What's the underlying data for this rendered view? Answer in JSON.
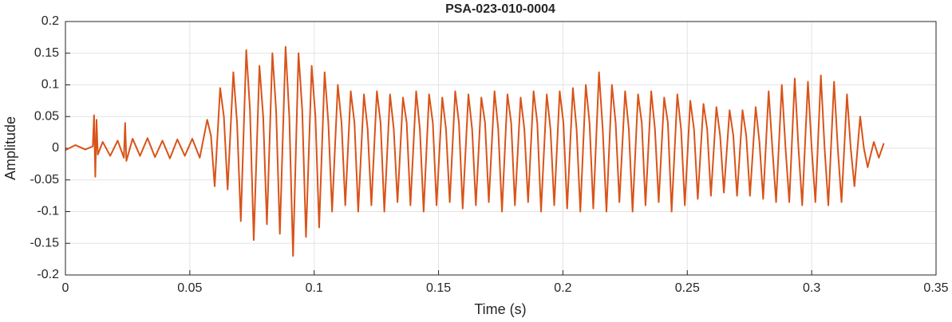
{
  "chart_data": {
    "type": "line",
    "title": "PSA-023-010-0004",
    "xlabel": "Time (s)",
    "ylabel": "Amplitude",
    "xlim": [
      0,
      0.35
    ],
    "xticks": [
      0,
      0.05,
      0.1,
      0.15,
      0.2,
      0.25,
      0.3,
      0.35
    ],
    "ylim": [
      -0.2,
      0.2
    ],
    "yticks": [
      -0.2,
      -0.15,
      -0.1,
      -0.05,
      0,
      0.05,
      0.1,
      0.15,
      0.2
    ],
    "grid": true,
    "series": [
      {
        "color": "#D95319",
        "x": [
          0,
          0.004,
          0.008,
          0.011,
          0.0115,
          0.012,
          0.0125,
          0.013,
          0.015,
          0.018,
          0.021,
          0.0235,
          0.024,
          0.0245,
          0.027,
          0.03,
          0.033,
          0.036,
          0.039,
          0.042,
          0.045,
          0.048,
          0.051,
          0.054,
          0.057,
          0.0585,
          0.06,
          0.0622,
          0.0637,
          0.0652,
          0.0675,
          0.069,
          0.0705,
          0.0727,
          0.0742,
          0.0757,
          0.078,
          0.0795,
          0.081,
          0.0832,
          0.0847,
          0.0862,
          0.0885,
          0.09,
          0.0915,
          0.0937,
          0.0952,
          0.0967,
          0.099,
          0.1005,
          0.102,
          0.1042,
          0.1057,
          0.1072,
          0.1095,
          0.111,
          0.1125,
          0.1147,
          0.1162,
          0.1177,
          0.12,
          0.1215,
          0.123,
          0.1252,
          0.1267,
          0.1282,
          0.1305,
          0.132,
          0.1335,
          0.1357,
          0.1372,
          0.1387,
          0.141,
          0.1425,
          0.144,
          0.1462,
          0.1477,
          0.1492,
          0.1515,
          0.153,
          0.1545,
          0.1567,
          0.1582,
          0.1597,
          0.162,
          0.1635,
          0.165,
          0.1672,
          0.1687,
          0.1702,
          0.1725,
          0.174,
          0.1755,
          0.1777,
          0.1792,
          0.1807,
          0.183,
          0.1845,
          0.186,
          0.1882,
          0.1897,
          0.1912,
          0.1935,
          0.195,
          0.1965,
          0.1987,
          0.2002,
          0.2017,
          0.204,
          0.2055,
          0.207,
          0.2092,
          0.2107,
          0.2122,
          0.2145,
          0.216,
          0.2175,
          0.2197,
          0.2212,
          0.2227,
          0.225,
          0.2265,
          0.228,
          0.2302,
          0.2317,
          0.2332,
          0.2355,
          0.237,
          0.2385,
          0.2407,
          0.2422,
          0.2437,
          0.246,
          0.2475,
          0.249,
          0.2512,
          0.2527,
          0.2542,
          0.2565,
          0.258,
          0.2595,
          0.2617,
          0.2632,
          0.2647,
          0.267,
          0.2685,
          0.27,
          0.2722,
          0.2737,
          0.2752,
          0.2775,
          0.279,
          0.2805,
          0.2827,
          0.2842,
          0.2857,
          0.288,
          0.2895,
          0.291,
          0.2932,
          0.2947,
          0.2962,
          0.2985,
          0.3,
          0.3015,
          0.3037,
          0.3052,
          0.3067,
          0.309,
          0.3105,
          0.312,
          0.3142,
          0.3157,
          0.3172,
          0.3195,
          0.321,
          0.3225,
          0.325,
          0.327,
          0.329
        ],
        "values": [
          -0.003,
          0.005,
          -0.002,
          0.003,
          0.052,
          -0.045,
          0.045,
          -0.01,
          0.01,
          -0.012,
          0.012,
          -0.015,
          0.04,
          -0.02,
          0.015,
          -0.012,
          0.016,
          -0.014,
          0.012,
          -0.016,
          0.014,
          -0.012,
          0.015,
          -0.015,
          0.045,
          0.02,
          -0.06,
          0.095,
          0.05,
          -0.065,
          0.12,
          0.04,
          -0.115,
          0.155,
          0.06,
          -0.145,
          0.13,
          0.05,
          -0.12,
          0.15,
          0.06,
          -0.135,
          0.16,
          0.05,
          -0.17,
          0.15,
          0.06,
          -0.14,
          0.13,
          0.05,
          -0.125,
          0.12,
          0.04,
          -0.1,
          0.1,
          0.04,
          -0.09,
          0.09,
          0.04,
          -0.1,
          0.085,
          0.03,
          -0.09,
          0.09,
          0.04,
          -0.1,
          0.085,
          0.03,
          -0.085,
          0.08,
          0.04,
          -0.09,
          0.09,
          0.03,
          -0.1,
          0.085,
          0.04,
          -0.09,
          0.08,
          0.03,
          -0.085,
          0.09,
          0.04,
          -0.095,
          0.085,
          0.03,
          -0.09,
          0.08,
          0.04,
          -0.085,
          0.09,
          0.03,
          -0.1,
          0.085,
          0.04,
          -0.09,
          0.08,
          0.03,
          -0.085,
          0.09,
          0.04,
          -0.1,
          0.085,
          0.03,
          -0.09,
          0.09,
          0.04,
          -0.095,
          0.095,
          0.03,
          -0.1,
          0.1,
          0.04,
          -0.095,
          0.12,
          0.03,
          -0.1,
          0.1,
          0.04,
          -0.085,
          0.09,
          0.03,
          -0.1,
          0.085,
          0.04,
          -0.09,
          0.09,
          0.03,
          -0.085,
          0.08,
          0.04,
          -0.1,
          0.085,
          0.03,
          -0.09,
          0.075,
          0.03,
          -0.08,
          0.07,
          0.03,
          -0.075,
          0.065,
          0.02,
          -0.07,
          0.06,
          0.02,
          -0.075,
          0.06,
          0.02,
          -0.075,
          0.065,
          0.01,
          -0.08,
          0.09,
          0,
          -0.085,
          0.1,
          0,
          -0.085,
          0.11,
          0,
          -0.09,
          0.105,
          0,
          -0.085,
          0.115,
          0,
          -0.09,
          0.105,
          0,
          -0.085,
          0.085,
          0,
          -0.06,
          0.05,
          0,
          -0.03,
          0.01,
          -0.015,
          0.008
        ]
      }
    ]
  }
}
